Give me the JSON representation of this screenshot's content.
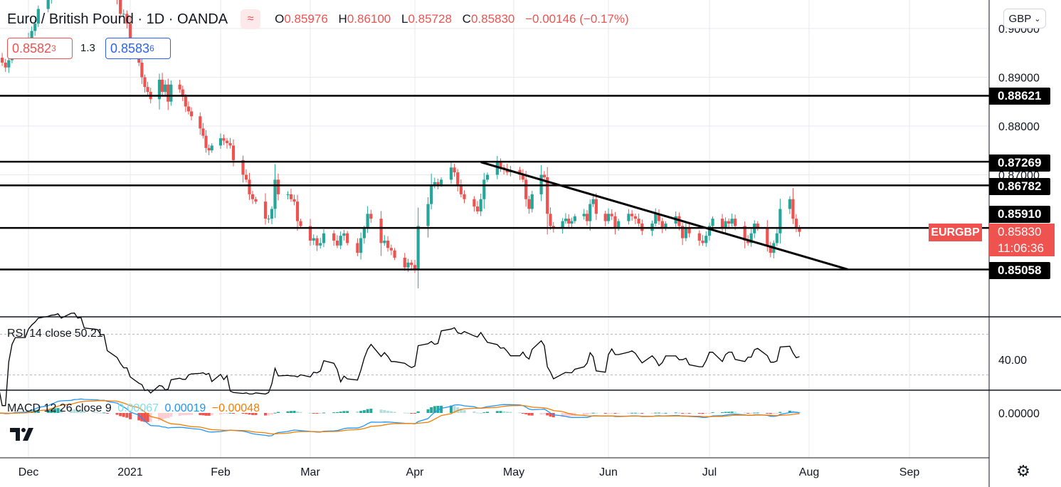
{
  "header": {
    "symbol_title": "Euro / British Pound · 1D · OANDA",
    "ohlc": {
      "o_label": "O",
      "o_value": "0.85976",
      "h_label": "H",
      "h_value": "0.86100",
      "l_label": "L",
      "l_value": "0.85728",
      "c_label": "C",
      "c_value": "0.85830",
      "change": "−0.00146 (−0.17%)"
    },
    "bid_main": "0.8582",
    "bid_sup": "3",
    "spread": "1.3",
    "ask_main": "0.8583",
    "ask_sup": "6",
    "currency_button": "GBP",
    "wave_icon": "wave-icon"
  },
  "colors": {
    "up": "#26a69a",
    "down": "#ef5350",
    "line": "#000000",
    "macd": "#2196f3",
    "signal": "#f57c00",
    "rsi": "#000000",
    "grid": "#e6e9ef"
  },
  "price_tags": {
    "l1": "0.88621",
    "l2": "0.87269",
    "l3": "0.86782",
    "l4": "0.85910",
    "l5": "0.85058"
  },
  "last_price": {
    "symbol": "EURGBP",
    "price": "0.85830",
    "countdown": "11:06:36"
  },
  "rsi": {
    "label": "RSI 14 close",
    "value": "50.21",
    "axis_label": "40.00"
  },
  "macd": {
    "label": "MACD 12 26 close 9",
    "hist": "0.00067",
    "macd": "0.00019",
    "signal": "−0.00048",
    "axis_label": "0.00000"
  },
  "chart_data": [
    {
      "type": "candlestick",
      "title": "Euro / British Pound · 1D · OANDA",
      "x_ticks": [
        "Dec",
        "2021",
        "Feb",
        "Mar",
        "Apr",
        "May",
        "Jun",
        "Jul",
        "Aug",
        "Sep"
      ],
      "y_ticks": [
        "0.90000",
        "0.89000",
        "0.88000",
        "0.87000"
      ],
      "ylim": [
        0.846,
        0.91
      ],
      "grid": true,
      "horizontal_levels": [
        0.88621,
        0.87269,
        0.86782,
        0.8591,
        0.85058
      ],
      "trendline": {
        "from": {
          "date": "2021-04-21",
          "price": 0.8726
        },
        "to": {
          "date": "2021-08-13",
          "price": 0.8506
        }
      },
      "candles": {
        "start": "2020-11-20",
        "close": [
          0.894,
          0.893,
          0.892,
          0.8935,
          0.895,
          0.896,
          0.896,
          0.898,
          0.8995,
          0.901,
          0.904,
          0.906,
          0.9075,
          0.908,
          0.91,
          0.908,
          0.909,
          0.911,
          0.91,
          0.912,
          0.909,
          0.91,
          0.911,
          0.91,
          0.913,
          0.908,
          0.906,
          0.903,
          0.903,
          0.901,
          0.895,
          0.893,
          0.89,
          0.888,
          0.887,
          0.8855,
          0.8895,
          0.887,
          0.8885,
          0.885,
          0.8885,
          0.8875,
          0.886,
          0.884,
          0.883,
          0.882,
          0.8795,
          0.878,
          0.8755,
          0.875,
          0.876,
          0.8775,
          0.877,
          0.8765,
          0.876,
          0.873,
          0.87,
          0.869,
          0.866,
          0.865,
          0.8645,
          0.861,
          0.861,
          0.863,
          0.869,
          0.866,
          0.866,
          0.865,
          0.8645,
          0.8605,
          0.8595,
          0.8565,
          0.857,
          0.8555,
          0.856,
          0.858,
          0.8565,
          0.8555,
          0.8575,
          0.858,
          0.856,
          0.854,
          0.857,
          0.859,
          0.862,
          0.861,
          0.856,
          0.8565,
          0.855,
          0.8545,
          0.853,
          0.851,
          0.852,
          0.8515,
          0.8505,
          0.8595,
          0.864,
          0.868,
          0.8685,
          0.868,
          0.869,
          0.8715,
          0.8705,
          0.868,
          0.866,
          0.865,
          0.8635,
          0.8625,
          0.865,
          0.869,
          0.87,
          0.8726,
          0.8715,
          0.8712,
          0.8705,
          0.871,
          0.87,
          0.869,
          0.865,
          0.863,
          0.866,
          0.87,
          0.8695,
          0.862,
          0.8595,
          0.859,
          0.8605,
          0.861,
          0.86,
          0.8605,
          0.8615,
          0.862,
          0.8605,
          0.864,
          0.865,
          0.862,
          0.8605,
          0.862,
          0.8615,
          0.859,
          0.8605,
          0.862,
          0.8615,
          0.861,
          0.86,
          0.8585,
          0.86,
          0.862,
          0.8605,
          0.859,
          0.86,
          0.8615,
          0.8595,
          0.857,
          0.859,
          0.858,
          0.8565,
          0.856,
          0.8575,
          0.8595,
          0.861,
          0.859,
          0.8605,
          0.86,
          0.861,
          0.8595,
          0.8565,
          0.856,
          0.858,
          0.86,
          0.859,
          0.8555,
          0.854,
          0.856,
          0.858,
          0.863,
          0.865,
          0.861,
          0.859,
          0.8583
        ]
      }
    },
    {
      "type": "line",
      "title": "RSI 14 close",
      "ylim": [
        20,
        80
      ],
      "y_ticks": [
        "40.00"
      ],
      "bands": [
        70,
        30
      ],
      "last_value": 50.21
    },
    {
      "type": "line",
      "title": "MACD 12 26 close 9",
      "series": [],
      "y_ticks": [
        "0.00000"
      ],
      "last_values": {
        "hist": 0.00067,
        "macd": 0.00019,
        "signal": -0.00048
      }
    }
  ]
}
